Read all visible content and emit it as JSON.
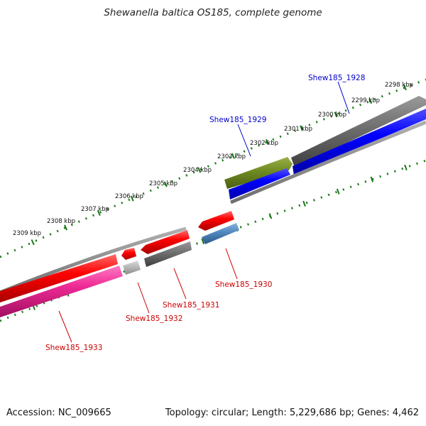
{
  "title": "Shewanella baltica OS185, complete genome",
  "footer": {
    "accession": "Accession: NC_009665",
    "summary": "Topology: circular; Length: 5,229,686 bp; Genes: 4,462"
  },
  "colors": {
    "tick": "#1a7a1a",
    "forward_label": "#0000cc",
    "reverse_label": "#cc0000",
    "backbone": "#8c8c8c"
  },
  "scale": {
    "unit": "kbp",
    "labels": [
      2298,
      2299,
      2300,
      2301,
      2302,
      2303,
      2304,
      2305,
      2306,
      2307,
      2308,
      2309
    ]
  },
  "genes": [
    {
      "name": "Shew185_1928",
      "strand": "forward",
      "label_color": "#0000cc"
    },
    {
      "name": "Shew185_1929",
      "strand": "forward",
      "label_color": "#0000cc"
    },
    {
      "name": "Shew185_1930",
      "strand": "reverse",
      "label_color": "#cc0000"
    },
    {
      "name": "Shew185_1931",
      "strand": "reverse",
      "label_color": "#cc0000"
    },
    {
      "name": "Shew185_1932",
      "strand": "reverse",
      "label_color": "#cc0000"
    },
    {
      "name": "Shew185_1933",
      "strand": "reverse",
      "label_color": "#cc0000"
    }
  ]
}
